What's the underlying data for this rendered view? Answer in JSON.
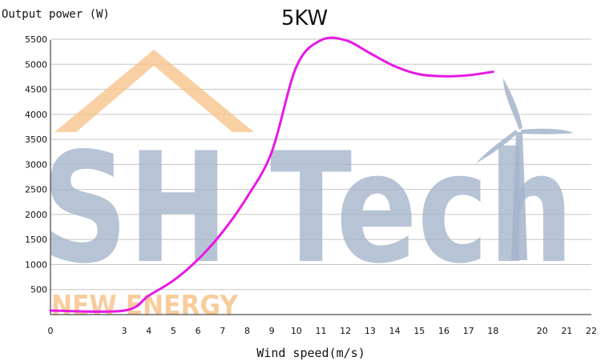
{
  "chart_data": {
    "type": "line",
    "title": "5KW",
    "ylabel": "Output power (W)",
    "xlabel": "Wind speed(m/s)",
    "x_ticks": [
      0,
      3,
      4,
      5,
      6,
      7,
      8,
      9,
      10,
      11,
      12,
      13,
      14,
      15,
      16,
      17,
      18,
      20,
      21,
      22
    ],
    "y_ticks": [
      500,
      1000,
      1500,
      2000,
      2500,
      3000,
      3500,
      4000,
      4500,
      5000,
      5500
    ],
    "ylim": [
      0,
      5500
    ],
    "grid": true,
    "series": [
      {
        "color": "#e619e6",
        "x": [
          0,
          3,
          4,
          5,
          6,
          7,
          8,
          9,
          10,
          11,
          12,
          13,
          14,
          15,
          16,
          17,
          18
        ],
        "y": [
          80,
          80,
          380,
          680,
          1100,
          1650,
          2350,
          3250,
          4950,
          5480,
          5480,
          5220,
          4960,
          4800,
          4760,
          4780,
          4850
        ]
      }
    ]
  },
  "watermark": {
    "main_text": "SH Tech",
    "sub_text": "NEW ENERGY",
    "color_main": "#a4b4cb",
    "color_sub": "#f7c48c"
  },
  "colors": {
    "grid": "#c6c6c6",
    "axis": "#222222",
    "curve": "#e619e6"
  }
}
